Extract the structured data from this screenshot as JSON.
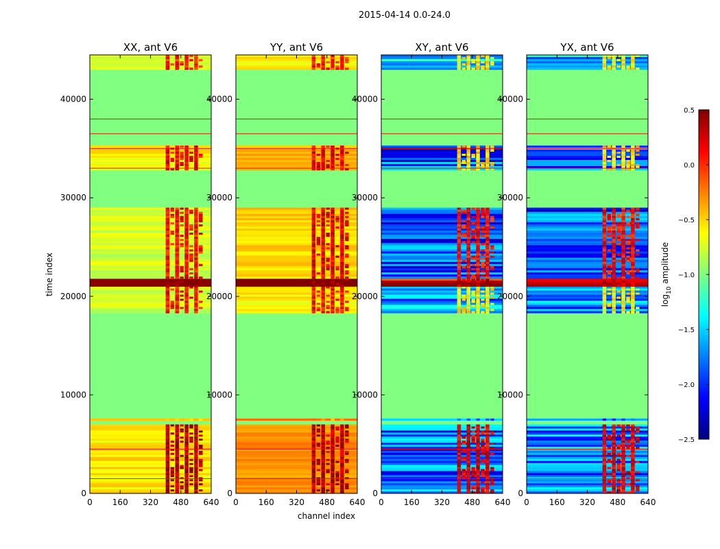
{
  "figure_title": "2015-04-14 0.0-24.0",
  "chart_data": {
    "type": "heatmap",
    "suptitle": "2015-04-14 0.0-24.0",
    "xlabel": "channel index",
    "ylabel": "time index",
    "xlim": [
      0,
      640
    ],
    "ylim": [
      0,
      44500
    ],
    "xticks": [
      0,
      160,
      320,
      480,
      640
    ],
    "yticks": [
      0,
      10000,
      20000,
      30000,
      40000
    ],
    "colorbar": {
      "label": "log10 amplitude",
      "label_base": "log",
      "label_sub": "10",
      "label_rest": " amplitude",
      "range": [
        -2.5,
        0.5
      ],
      "ticks": [
        0.5,
        0.0,
        -0.5,
        -1.0,
        -1.5,
        -2.0,
        -2.5
      ],
      "tick_labels": [
        "0.5",
        "0.0",
        "−0.5",
        "−1.0",
        "−1.5",
        "−2.0",
        "−2.5"
      ],
      "colormap": "jet"
    },
    "flagged_fill_value": -1.0,
    "panels": [
      {
        "title": "XX, ant V6",
        "kind": "parallel",
        "bands": [
          {
            "t0": 0,
            "t1": 7000,
            "base": -0.55,
            "rfi": 0.35
          },
          {
            "t0": 7400,
            "t1": 7600,
            "base": -0.4,
            "rfi": -0.4
          },
          {
            "t0": 18300,
            "t1": 21000,
            "base": -0.75,
            "rfi": 0.1
          },
          {
            "t0": 21000,
            "t1": 21800,
            "base": 0.5,
            "rfi": 0.5
          },
          {
            "t0": 21800,
            "t1": 29000,
            "base": -0.75,
            "rfi": 0.1
          },
          {
            "t0": 32800,
            "t1": 35300,
            "base": -0.6,
            "rfi": 0.15
          },
          {
            "t0": 43000,
            "t1": 44500,
            "base": -0.75,
            "rfi": 0.05
          }
        ],
        "lines": [
          1500,
          4500,
          33000,
          35000,
          36500,
          38000
        ]
      },
      {
        "title": "YY, ant V6",
        "kind": "parallel",
        "bands": [
          {
            "t0": 0,
            "t1": 7000,
            "base": -0.3,
            "rfi": 0.35
          },
          {
            "t0": 7400,
            "t1": 7600,
            "base": -0.3,
            "rfi": -0.3
          },
          {
            "t0": 18300,
            "t1": 21000,
            "base": -0.6,
            "rfi": 0.1
          },
          {
            "t0": 21000,
            "t1": 21800,
            "base": 0.5,
            "rfi": 0.5
          },
          {
            "t0": 21800,
            "t1": 29000,
            "base": -0.5,
            "rfi": 0.2
          },
          {
            "t0": 32800,
            "t1": 35300,
            "base": -0.4,
            "rfi": 0.15
          },
          {
            "t0": 43000,
            "t1": 44500,
            "base": -0.6,
            "rfi": 0.05
          }
        ],
        "lines": [
          1500,
          4500,
          33000,
          35000,
          36500,
          38000
        ]
      },
      {
        "title": "XY, ant V6",
        "kind": "cross",
        "bands": [
          {
            "t0": 0,
            "t1": 7000,
            "base": -1.8,
            "rfi": 0.2
          },
          {
            "t0": 7400,
            "t1": 7600,
            "base": -1.9,
            "rfi": -1.9
          },
          {
            "t0": 18300,
            "t1": 21000,
            "base": -1.7,
            "rfi": -0.6
          },
          {
            "t0": 21000,
            "t1": 21800,
            "base": 0.3,
            "rfi": 0.3
          },
          {
            "t0": 21800,
            "t1": 29000,
            "base": -1.9,
            "rfi": 0.1
          },
          {
            "t0": 32800,
            "t1": 35300,
            "base": -1.9,
            "rfi": -0.5
          },
          {
            "t0": 43000,
            "t1": 44500,
            "base": -1.6,
            "rfi": -0.6
          }
        ],
        "lines": [
          1500,
          4500,
          33000,
          35000,
          36500,
          38000
        ]
      },
      {
        "title": "YX, ant V6",
        "kind": "cross",
        "bands": [
          {
            "t0": 0,
            "t1": 7000,
            "base": -1.8,
            "rfi": 0.2
          },
          {
            "t0": 7400,
            "t1": 7600,
            "base": -1.9,
            "rfi": -1.9
          },
          {
            "t0": 18300,
            "t1": 21000,
            "base": -1.7,
            "rfi": -0.6
          },
          {
            "t0": 21000,
            "t1": 21800,
            "base": 0.3,
            "rfi": 0.3
          },
          {
            "t0": 21800,
            "t1": 29000,
            "base": -1.9,
            "rfi": 0.1
          },
          {
            "t0": 32800,
            "t1": 35300,
            "base": -1.9,
            "rfi": -0.5
          },
          {
            "t0": 43000,
            "t1": 44500,
            "base": -1.6,
            "rfi": -0.6
          }
        ],
        "lines": [
          1500,
          4500,
          33000,
          35000,
          36500,
          38000
        ]
      }
    ],
    "rfi_channels": [
      [
        400,
        600
      ]
    ]
  }
}
